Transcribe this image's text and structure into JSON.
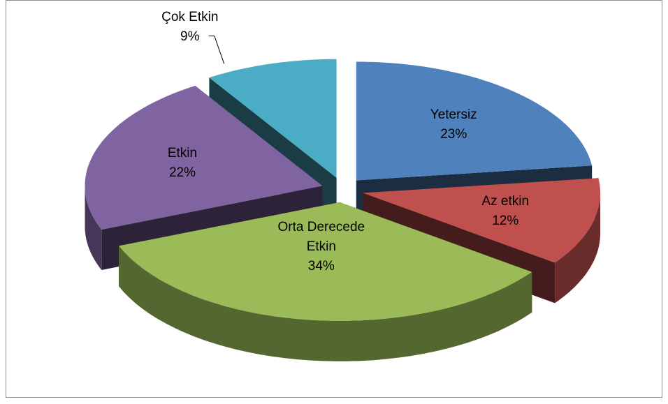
{
  "chart_data": {
    "type": "pie",
    "categories": [
      "Yetersiz",
      "Az etkin",
      "Orta Derecede Etkin",
      "Etkin",
      "Çok Etkin"
    ],
    "values": [
      23,
      12,
      34,
      22,
      9
    ],
    "value_labels": [
      "23%",
      "12%",
      "34%",
      "22%",
      "9%"
    ],
    "colors": [
      "#4f81bd",
      "#c0504d",
      "#9bbb59",
      "#8064a2",
      "#4bacc6"
    ]
  }
}
